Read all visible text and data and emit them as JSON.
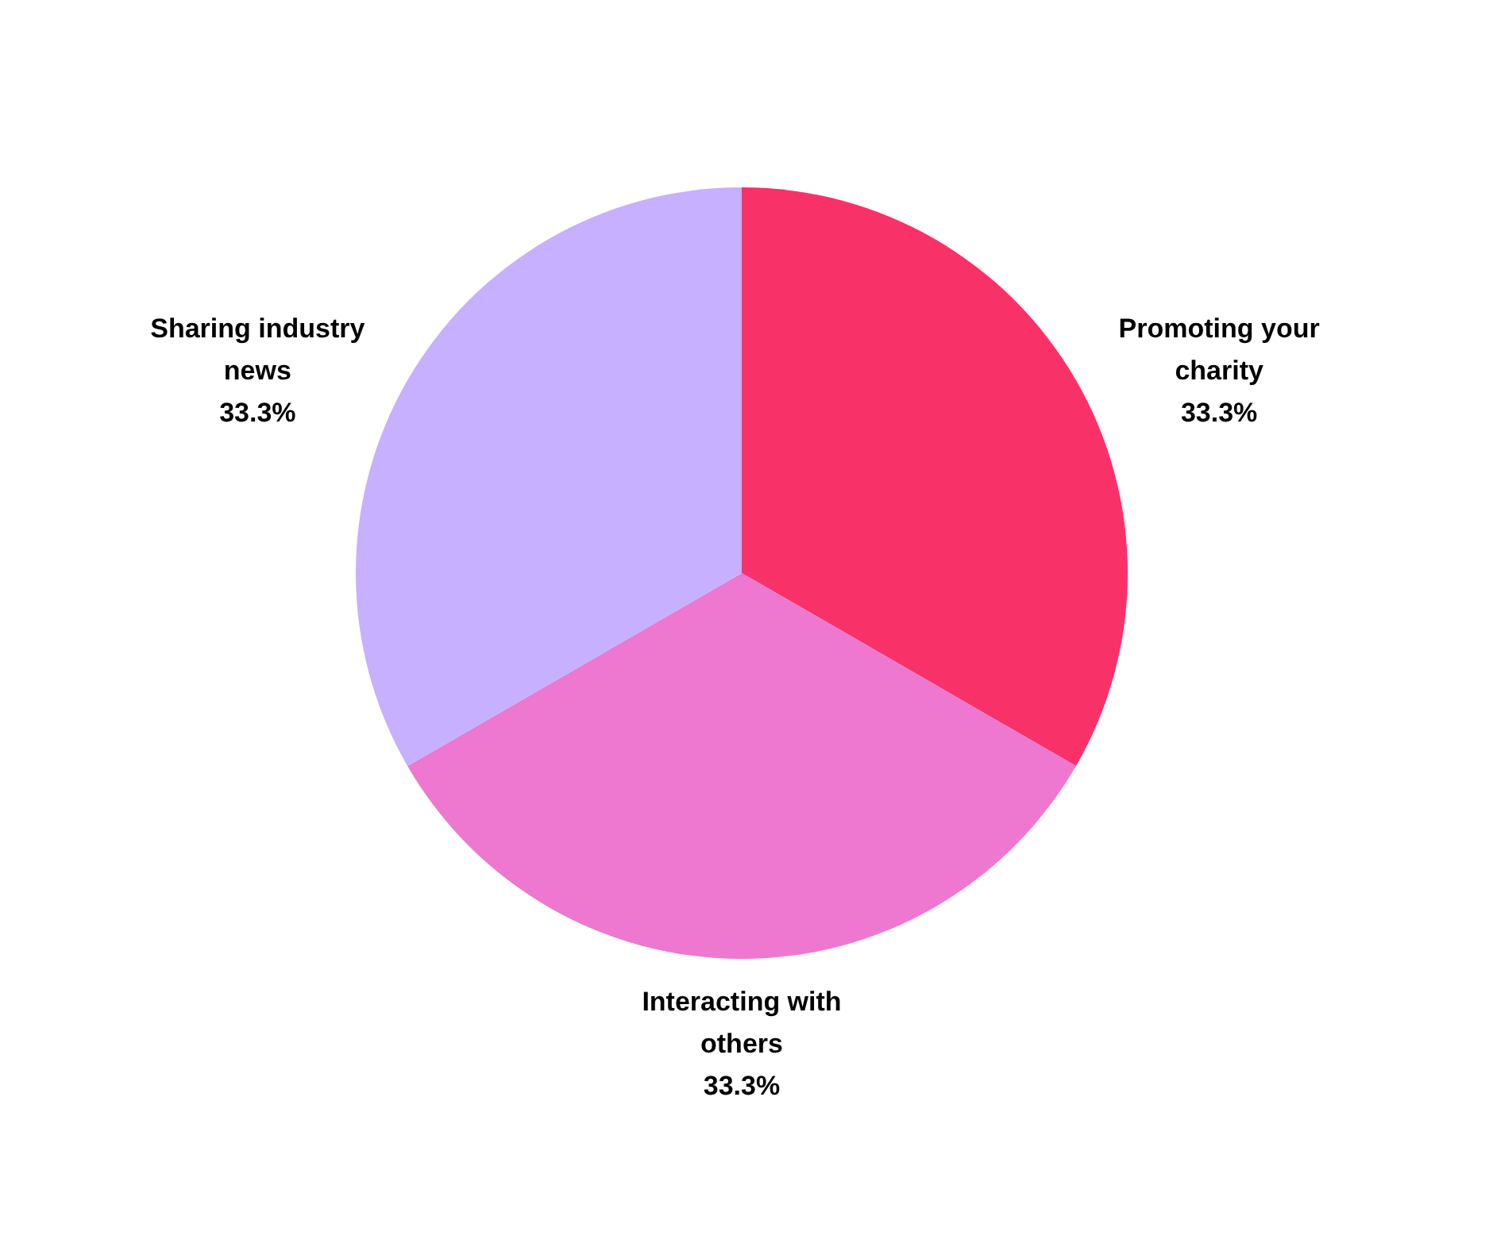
{
  "chart_data": {
    "type": "pie",
    "categories": [
      "Promoting your charity",
      "Interacting with others",
      "Sharing industry news"
    ],
    "values": [
      33.3,
      33.3,
      33.3
    ],
    "colors": [
      "#f83268",
      "#ee77cf",
      "#c6b0ff"
    ],
    "value_labels": [
      "33.3%",
      "33.3%",
      "33.3%"
    ],
    "legend": false
  }
}
